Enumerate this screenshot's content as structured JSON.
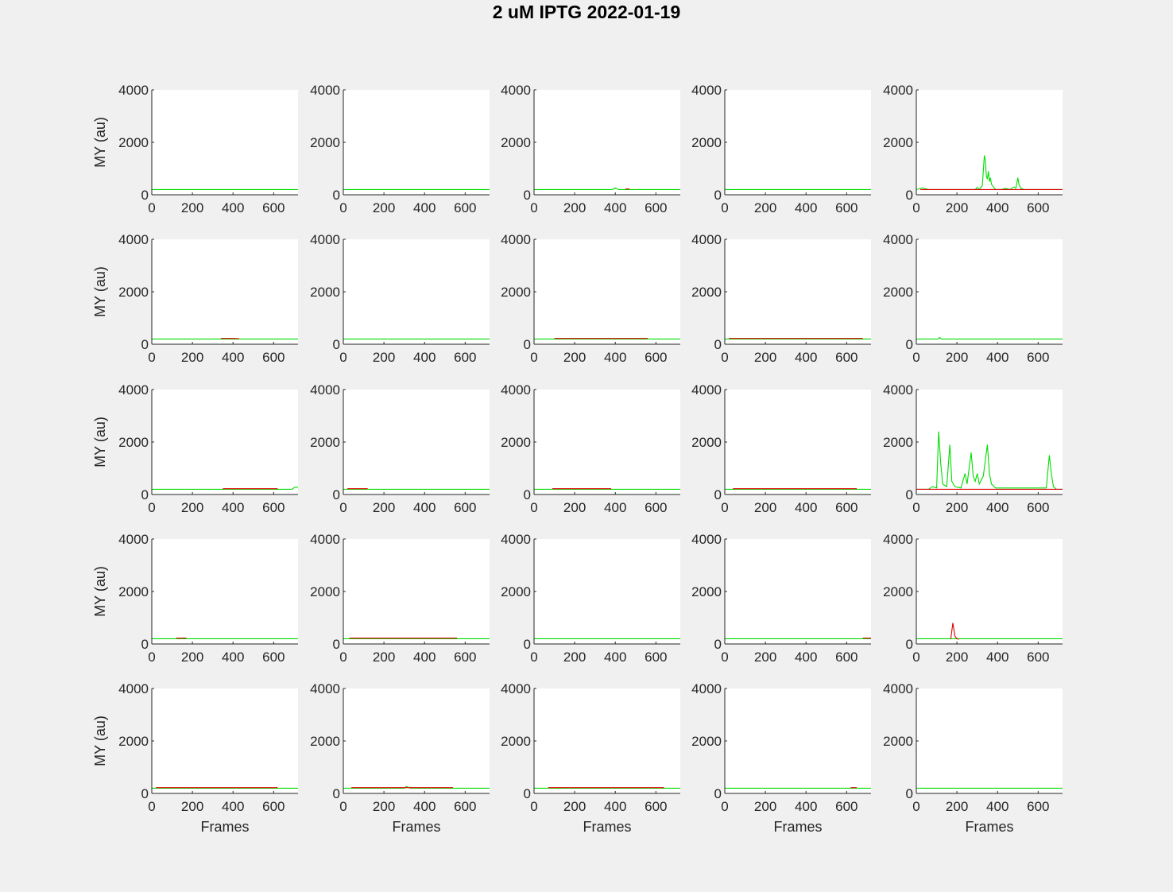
{
  "title": "2 uM IPTG 2022-01-19",
  "ylabel": "MY (au)",
  "xlabel": "Frames",
  "colors": {
    "green": "#00dd00",
    "red": "#dd0000",
    "axis": "#262626",
    "plot_bg": "#ffffff",
    "figure_bg": "#f0f0f0"
  },
  "chart_data": {
    "type": "line",
    "layout": {
      "rows": 5,
      "cols": 5
    },
    "xlim": [
      0,
      720
    ],
    "ylim": [
      0,
      4000
    ],
    "xticks": [
      0,
      200,
      400,
      600
    ],
    "yticks": [
      0,
      2000,
      4000
    ],
    "grid": false,
    "baseline": 200,
    "panels": [
      {
        "green": [
          [
            0,
            200
          ],
          [
            720,
            200
          ]
        ],
        "red": []
      },
      {
        "green": [
          [
            0,
            200
          ],
          [
            720,
            200
          ]
        ],
        "red": []
      },
      {
        "green": [
          [
            0,
            200
          ],
          [
            385,
            200
          ],
          [
            400,
            260
          ],
          [
            415,
            200
          ],
          [
            720,
            200
          ]
        ],
        "red": [
          [
            450,
            220
          ],
          [
            470,
            220
          ]
        ]
      },
      {
        "green": [
          [
            0,
            200
          ],
          [
            720,
            200
          ]
        ],
        "red": []
      },
      {
        "green": [
          [
            0,
            200
          ],
          [
            30,
            260
          ],
          [
            60,
            200
          ],
          [
            290,
            200
          ],
          [
            300,
            280
          ],
          [
            310,
            200
          ],
          [
            325,
            350
          ],
          [
            330,
            900
          ],
          [
            335,
            1500
          ],
          [
            340,
            1300
          ],
          [
            345,
            700
          ],
          [
            350,
            600
          ],
          [
            355,
            900
          ],
          [
            360,
            500
          ],
          [
            365,
            650
          ],
          [
            370,
            400
          ],
          [
            380,
            300
          ],
          [
            390,
            200
          ],
          [
            420,
            200
          ],
          [
            440,
            250
          ],
          [
            460,
            200
          ],
          [
            480,
            300
          ],
          [
            490,
            250
          ],
          [
            500,
            650
          ],
          [
            505,
            400
          ],
          [
            515,
            250
          ],
          [
            530,
            200
          ],
          [
            720,
            200
          ]
        ],
        "red": [
          [
            20,
            200
          ],
          [
            720,
            200
          ]
        ]
      },
      {
        "green": [
          [
            0,
            200
          ],
          [
            720,
            200
          ]
        ],
        "red": [
          [
            340,
            220
          ],
          [
            400,
            220
          ],
          [
            430,
            210
          ]
        ]
      },
      {
        "green": [
          [
            0,
            200
          ],
          [
            720,
            200
          ]
        ],
        "red": []
      },
      {
        "green": [
          [
            0,
            200
          ],
          [
            720,
            200
          ]
        ],
        "red": [
          [
            100,
            220
          ],
          [
            200,
            220
          ],
          [
            520,
            220
          ],
          [
            560,
            220
          ]
        ]
      },
      {
        "green": [
          [
            0,
            200
          ],
          [
            720,
            200
          ]
        ],
        "red": [
          [
            20,
            220
          ],
          [
            120,
            220
          ],
          [
            620,
            220
          ],
          [
            680,
            220
          ]
        ]
      },
      {
        "green": [
          [
            0,
            200
          ],
          [
            105,
            200
          ],
          [
            115,
            260
          ],
          [
            125,
            200
          ],
          [
            720,
            200
          ]
        ],
        "red": []
      },
      {
        "green": [
          [
            0,
            200
          ],
          [
            690,
            200
          ],
          [
            705,
            280
          ],
          [
            720,
            280
          ]
        ],
        "red": [
          [
            350,
            220
          ],
          [
            620,
            220
          ]
        ]
      },
      {
        "green": [
          [
            0,
            200
          ],
          [
            720,
            200
          ]
        ],
        "red": [
          [
            20,
            220
          ],
          [
            120,
            220
          ]
        ]
      },
      {
        "green": [
          [
            0,
            200
          ],
          [
            720,
            200
          ]
        ],
        "red": [
          [
            90,
            220
          ],
          [
            350,
            220
          ],
          [
            380,
            220
          ]
        ]
      },
      {
        "green": [
          [
            0,
            200
          ],
          [
            720,
            200
          ]
        ],
        "red": [
          [
            40,
            220
          ],
          [
            650,
            220
          ]
        ]
      },
      {
        "green": [
          [
            0,
            200
          ],
          [
            60,
            200
          ],
          [
            80,
            300
          ],
          [
            100,
            250
          ],
          [
            110,
            2400
          ],
          [
            120,
            1200
          ],
          [
            130,
            400
          ],
          [
            150,
            300
          ],
          [
            165,
            1900
          ],
          [
            175,
            500
          ],
          [
            190,
            300
          ],
          [
            220,
            250
          ],
          [
            240,
            800
          ],
          [
            250,
            400
          ],
          [
            270,
            1600
          ],
          [
            280,
            700
          ],
          [
            290,
            500
          ],
          [
            300,
            800
          ],
          [
            310,
            400
          ],
          [
            330,
            700
          ],
          [
            350,
            1900
          ],
          [
            360,
            800
          ],
          [
            370,
            400
          ],
          [
            390,
            250
          ],
          [
            450,
            250
          ],
          [
            500,
            250
          ],
          [
            640,
            250
          ],
          [
            655,
            1500
          ],
          [
            665,
            800
          ],
          [
            675,
            300
          ],
          [
            690,
            200
          ],
          [
            720,
            200
          ]
        ],
        "red": [
          [
            0,
            200
          ],
          [
            720,
            200
          ]
        ]
      },
      {
        "green": [
          [
            0,
            200
          ],
          [
            720,
            200
          ]
        ],
        "red": [
          [
            120,
            220
          ],
          [
            170,
            220
          ]
        ]
      },
      {
        "green": [
          [
            0,
            200
          ],
          [
            720,
            200
          ]
        ],
        "red": [
          [
            30,
            220
          ],
          [
            80,
            220
          ],
          [
            520,
            220
          ],
          [
            560,
            220
          ]
        ]
      },
      {
        "green": [
          [
            0,
            200
          ],
          [
            720,
            200
          ]
        ],
        "red": [
          [
            620,
            220
          ]
        ]
      },
      {
        "green": [
          [
            0,
            200
          ],
          [
            720,
            200
          ]
        ],
        "red": [
          [
            680,
            220
          ],
          [
            720,
            220
          ]
        ]
      },
      {
        "green": [
          [
            0,
            200
          ],
          [
            720,
            200
          ]
        ],
        "red": [
          [
            170,
            200
          ],
          [
            180,
            800
          ],
          [
            190,
            300
          ],
          [
            200,
            200
          ],
          [
            210,
            180
          ]
        ]
      },
      {
        "green": [
          [
            0,
            200
          ],
          [
            720,
            200
          ]
        ],
        "red": [
          [
            20,
            220
          ],
          [
            150,
            220
          ],
          [
            280,
            220
          ],
          [
            620,
            220
          ]
        ]
      },
      {
        "green": [
          [
            0,
            200
          ],
          [
            300,
            200
          ],
          [
            310,
            260
          ],
          [
            330,
            200
          ],
          [
            720,
            200
          ]
        ],
        "red": [
          [
            40,
            220
          ],
          [
            150,
            220
          ],
          [
            540,
            220
          ]
        ]
      },
      {
        "green": [
          [
            0,
            200
          ],
          [
            720,
            200
          ]
        ],
        "red": [
          [
            70,
            220
          ],
          [
            640,
            220
          ]
        ]
      },
      {
        "green": [
          [
            0,
            200
          ],
          [
            720,
            200
          ]
        ],
        "red": [
          [
            620,
            220
          ],
          [
            650,
            220
          ]
        ]
      },
      {
        "green": [
          [
            0,
            200
          ],
          [
            720,
            200
          ]
        ],
        "red": [
          [
            50,
            220
          ]
        ]
      }
    ]
  }
}
